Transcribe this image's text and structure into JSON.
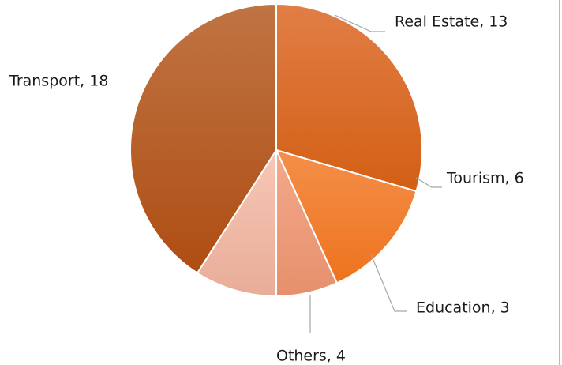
{
  "chart_data": {
    "type": "pie",
    "title": "",
    "start": "12 o'clock, clockwise",
    "slices": [
      {
        "label": "Real Estate",
        "value": 13,
        "color_top": "#e17e46",
        "color_bottom": "#d35f14"
      },
      {
        "label": "Tourism",
        "value": 6,
        "color_top": "#f48f4a",
        "color_bottom": "#ee731d"
      },
      {
        "label": "Education",
        "value": 3,
        "color_top": "#f4a98c",
        "color_bottom": "#e6906c"
      },
      {
        "label": "Others",
        "value": 4,
        "color_top": "#f7c7b7",
        "color_bottom": "#e8ad98"
      },
      {
        "label": "Transport",
        "value": 18,
        "color_top": "#c07443",
        "color_bottom": "#ae4d13"
      }
    ]
  },
  "colors": {
    "slice_separator": "#ffffff",
    "leader_line": "#a6a6a6",
    "label_text": "#1a1a1a",
    "frame_edge": "#9ec3df"
  }
}
